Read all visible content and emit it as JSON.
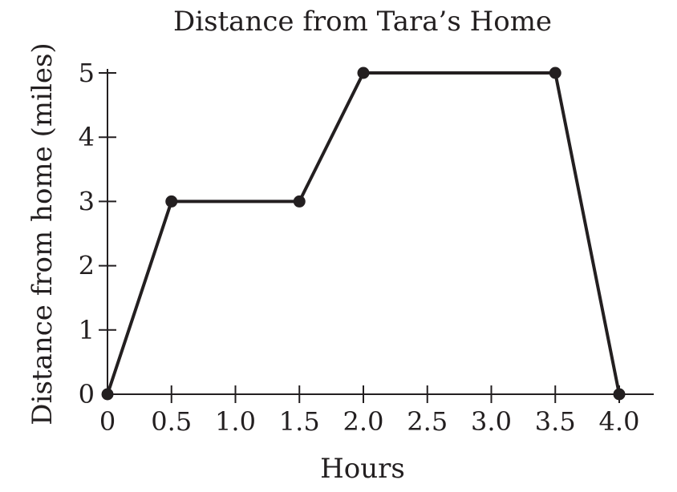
{
  "chart_data": {
    "type": "line",
    "title": "Distance from Tara’s Home",
    "xlabel": "Hours",
    "ylabel": "Distance from home (miles)",
    "xlim": [
      0,
      4.25
    ],
    "ylim": [
      0,
      5
    ],
    "x_ticks": [
      0,
      0.5,
      1.0,
      1.5,
      2.0,
      2.5,
      3.0,
      3.5,
      4.0
    ],
    "x_tick_labels": [
      "0",
      "0.5",
      "1.0",
      "1.5",
      "2.0",
      "2.5",
      "3.0",
      "3.5",
      "4.0"
    ],
    "y_ticks": [
      0,
      1,
      2,
      3,
      4,
      5
    ],
    "y_tick_labels": [
      "0",
      "1",
      "2",
      "3",
      "4",
      "5"
    ],
    "grid": false,
    "series": [
      {
        "x": [
          0,
          0.5,
          1.5,
          2.0,
          3.5,
          4.0
        ],
        "y": [
          0,
          3,
          3,
          5,
          5,
          0
        ],
        "markers": true,
        "color": "#231f20"
      }
    ]
  }
}
